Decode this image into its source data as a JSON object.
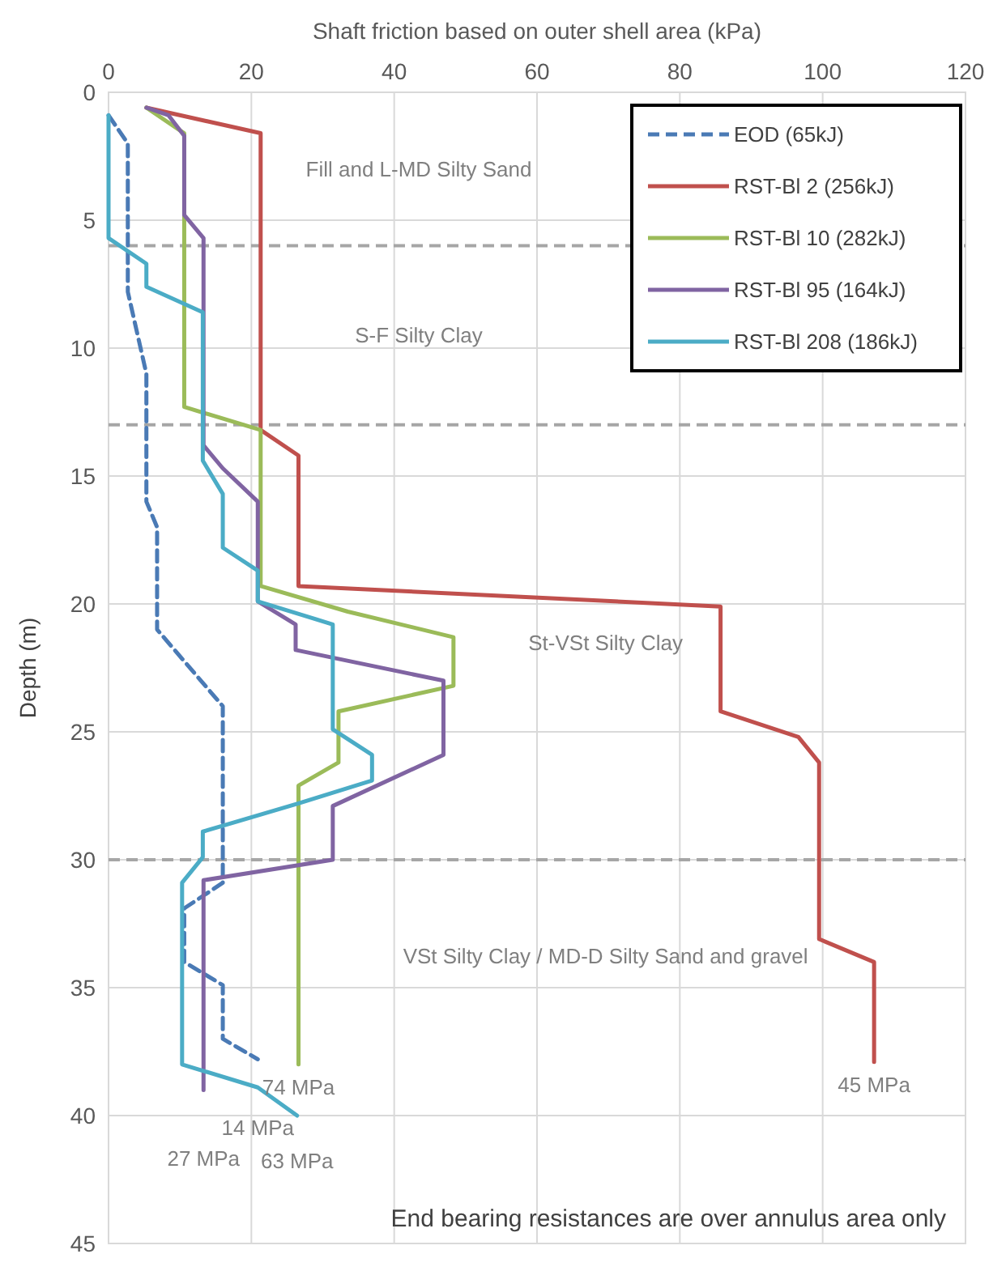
{
  "chart_data": {
    "type": "line",
    "xlabel": "Shaft friction based on outer shell area (kPa)",
    "ylabel": "Depth (m)",
    "xlim": [
      0,
      120
    ],
    "xticks": [
      0,
      20,
      40,
      60,
      80,
      100,
      120
    ],
    "ylim": [
      45,
      0
    ],
    "yticks": [
      0,
      5,
      10,
      15,
      20,
      25,
      30,
      35,
      40,
      45
    ],
    "grid": true,
    "legend": "top right",
    "series": [
      {
        "name": "EOD (65kJ)",
        "color": "#4a7ab5",
        "line_style": "dashed",
        "x": [
          0,
          2.7,
          2.7,
          5.3,
          5.3,
          6.8,
          6.8,
          16,
          16,
          10.6,
          10.6,
          16,
          16,
          20.9
        ],
        "values": [
          0.9,
          2,
          7.8,
          11,
          16,
          17,
          21,
          24,
          30.9,
          31.9,
          34,
          34.9,
          37,
          37.8
        ]
      },
      {
        "name": "RST-Bl 2 (256kJ)",
        "color": "#c0504d",
        "line_style": "solid",
        "x": [
          5.3,
          21.3,
          21.3,
          26.6,
          26.6,
          85.7,
          85.7,
          96.6,
          99.5,
          99.5,
          107.2,
          107.2
        ],
        "values": [
          0.6,
          1.6,
          13.2,
          14.2,
          19.3,
          20.1,
          24.2,
          25.2,
          26.2,
          33.1,
          34,
          37.9
        ]
      },
      {
        "name": "RST-Bl 10 (282kJ)",
        "color": "#9bbb59",
        "line_style": "solid",
        "x": [
          5.3,
          10.6,
          10.6,
          21.3,
          21.3,
          33.5,
          48.3,
          48.3,
          32.2,
          32.2,
          26.6,
          26.6
        ],
        "values": [
          0.6,
          1.6,
          12.3,
          13.2,
          19.3,
          20.3,
          21.3,
          23.2,
          24.2,
          26.2,
          27.1,
          38
        ]
      },
      {
        "name": "RST-Bl 95 (164kJ)",
        "color": "#8064a2",
        "line_style": "solid",
        "x": [
          5.3,
          8.4,
          10.6,
          10.6,
          13.3,
          13.3,
          16,
          20.9,
          20.9,
          26.2,
          26.2,
          46.9,
          46.9,
          31.4,
          31.4,
          13.3,
          13.3
        ],
        "values": [
          0.6,
          0.9,
          1.7,
          4.8,
          5.7,
          13.8,
          14.7,
          16,
          19.9,
          20.8,
          21.8,
          23,
          25.9,
          27.9,
          30,
          30.8,
          39
        ]
      },
      {
        "name": "RST-Bl 208 (186kJ)",
        "color": "#4bacc6",
        "line_style": "solid",
        "x": [
          0,
          0,
          5.3,
          5.3,
          13.2,
          13.2,
          16,
          16,
          20.9,
          20.9,
          31.4,
          31.4,
          36.9,
          36.9,
          26.6,
          13.2,
          13.2,
          10.3,
          10.3,
          20.9,
          26.4
        ],
        "values": [
          0.9,
          5.7,
          6.7,
          7.6,
          8.6,
          14.4,
          15.7,
          17.8,
          18.7,
          19.9,
          20.8,
          24.9,
          25.9,
          26.9,
          27.8,
          28.9,
          29.9,
          30.9,
          38,
          38.9,
          40
        ]
      }
    ],
    "ref_lines": [
      {
        "axis": "y",
        "value": 6,
        "color": "#a6a6a6",
        "line_style": "dashed"
      },
      {
        "axis": "y",
        "value": 13,
        "color": "#a6a6a6",
        "line_style": "dashed"
      },
      {
        "axis": "y",
        "value": 30,
        "color": "#a6a6a6",
        "line_style": "dashed"
      }
    ],
    "annotations": [
      "Fill and L-MD Silty Sand",
      "S-F Silty Clay",
      "St-VSt Silty Clay",
      "VSt Silty Clay / MD-D Silty Sand and gravel",
      {
        "text": "74 MPa",
        "x": 26.6,
        "y": 38
      },
      {
        "text": "14 MPa",
        "x": 20.9,
        "y": 37.8
      },
      {
        "text": "27 MPa",
        "x": 13.3,
        "y": 39
      },
      {
        "text": "63 MPa",
        "x": 26.4,
        "y": 40
      },
      {
        "text": "45 MPa",
        "x": 107.2,
        "y": 37.9
      },
      "End bearing resistances are over annulus area only"
    ]
  }
}
